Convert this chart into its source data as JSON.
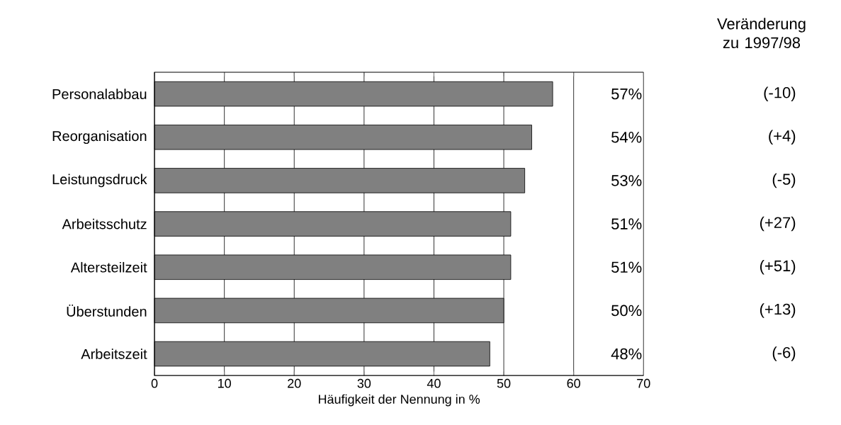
{
  "chart_data": {
    "type": "bar",
    "orientation": "horizontal",
    "xlabel": "Häufigkeit der Nennung in %",
    "categories": [
      "Personalabbau",
      "Reorganisation",
      "Leistungsdruck",
      "Arbeitsschutz",
      "Altersteilzeit",
      "Überstunden",
      "Arbeitszeit"
    ],
    "values": [
      57,
      54,
      53,
      51,
      51,
      50,
      48
    ],
    "value_labels": [
      "57%",
      "54%",
      "53%",
      "51%",
      "51%",
      "50%",
      "48%"
    ],
    "color": "#808080",
    "xlim": [
      0,
      70
    ],
    "xticks": [
      0,
      10,
      20,
      30,
      40,
      50,
      60,
      70
    ],
    "grid": "x",
    "annotations": [
      "Veränderung zu 1997/98",
      "(-10)",
      "(+4)",
      "(-5)",
      "(+27)",
      "(+51)",
      "(+13)",
      "(-6)"
    ]
  }
}
